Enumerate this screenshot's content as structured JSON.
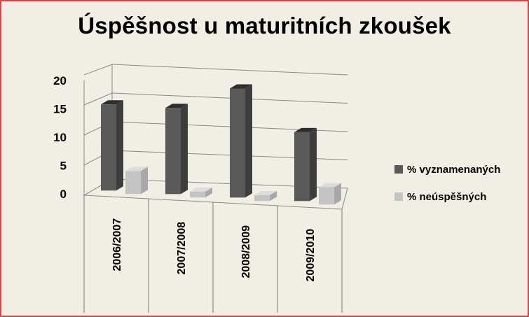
{
  "chart_data": {
    "type": "bar",
    "title": "Úspěšnost u maturitních zkoušek",
    "xlabel": "",
    "ylabel": "",
    "categories": [
      "2006/2007",
      "2007/2008",
      "2008/2009",
      "2009/2010"
    ],
    "series": [
      {
        "name": "% vyznamenaných",
        "values": [
          15,
          15,
          19,
          12
        ]
      },
      {
        "name": "% neúspěšných",
        "values": [
          4,
          1,
          1,
          3
        ]
      }
    ],
    "ylim": [
      0,
      20
    ],
    "yticks": [
      "0",
      "5",
      "10",
      "15",
      "20"
    ],
    "grid": true,
    "legend": "right",
    "colors": {
      "series1": "#5a5a5a",
      "series2": "#c4c4c4",
      "background": "#f1efe3",
      "border": "#c9494d"
    }
  }
}
